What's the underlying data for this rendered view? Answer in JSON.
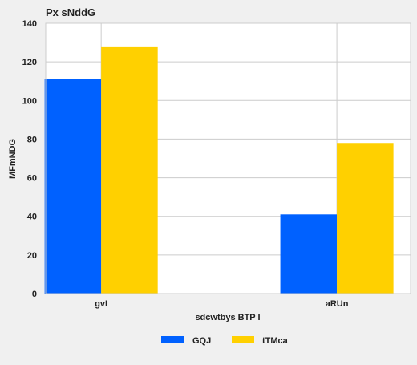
{
  "chart_data": {
    "type": "bar",
    "title": "Px sNddG",
    "xlabel": "sdcwtbys BTP I",
    "ylabel": "MFmNDG",
    "categories": [
      "gvI",
      "aRUn"
    ],
    "series": [
      {
        "name": "GQJ",
        "values": [
          111,
          41
        ],
        "color": "#0061ff"
      },
      {
        "name": "tTMca",
        "values": [
          128,
          78
        ],
        "color": "#ffd000"
      }
    ],
    "ylim": [
      0,
      140
    ],
    "yticks": [
      0,
      20,
      40,
      60,
      80,
      100,
      120,
      140
    ],
    "grid": true,
    "legend_position": "bottom-center"
  }
}
